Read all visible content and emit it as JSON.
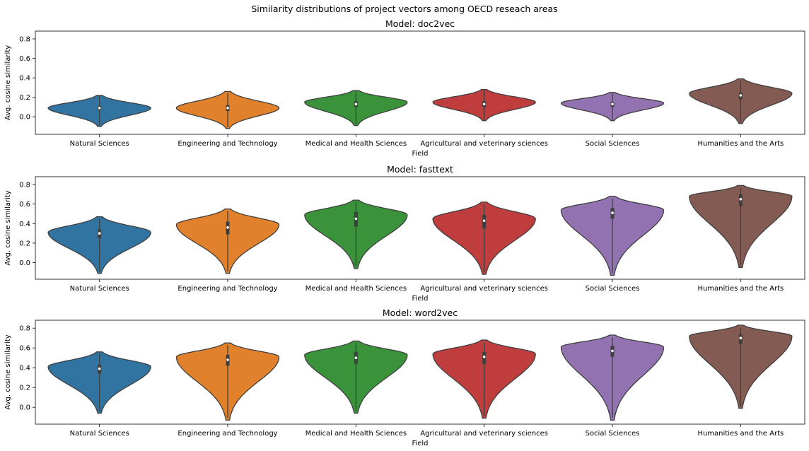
{
  "suptitle": "Similarity distributions of project vectors among OECD reseach areas",
  "colors": [
    "#3274a1",
    "#e1812c",
    "#3a923a",
    "#c03d3e",
    "#9372b2",
    "#845b53"
  ],
  "chart_data": [
    {
      "type": "violin",
      "title": "Model: doc2vec",
      "xlabel": "Field",
      "ylabel": "Avg. cosine similarity",
      "ylim": [
        -0.18,
        0.88
      ],
      "yticks": [
        0.0,
        0.2,
        0.4,
        0.6,
        0.8
      ],
      "yticklabels": [
        "0.0",
        "0.2",
        "0.4",
        "0.6",
        "0.8"
      ],
      "categories": [
        "Natural Sciences",
        "Engineering and Technology",
        "Medical and Health Sciences",
        "Agricultural and veterinary sciences",
        "Social Sciences",
        "Humanities and the Arts"
      ],
      "violins": [
        {
          "min": -0.1,
          "max": 0.22,
          "mode": 0.09,
          "q1": 0.07,
          "median": 0.09,
          "q3": 0.11
        },
        {
          "min": -0.12,
          "max": 0.26,
          "mode": 0.09,
          "q1": 0.06,
          "median": 0.09,
          "q3": 0.12
        },
        {
          "min": -0.09,
          "max": 0.27,
          "mode": 0.15,
          "q1": 0.1,
          "median": 0.13,
          "q3": 0.16
        },
        {
          "min": -0.04,
          "max": 0.28,
          "mode": 0.15,
          "q1": 0.1,
          "median": 0.13,
          "q3": 0.16
        },
        {
          "min": -0.04,
          "max": 0.25,
          "mode": 0.14,
          "q1": 0.1,
          "median": 0.13,
          "q3": 0.15
        },
        {
          "min": -0.07,
          "max": 0.39,
          "mode": 0.24,
          "q1": 0.18,
          "median": 0.22,
          "q3": 0.25
        }
      ]
    },
    {
      "type": "violin",
      "title": "Model: fasttext",
      "xlabel": "Field",
      "ylabel": "Avg. cosine similarity",
      "ylim": [
        -0.17,
        0.88
      ],
      "yticks": [
        0.0,
        0.2,
        0.4,
        0.6,
        0.8
      ],
      "yticklabels": [
        "0.0",
        "0.2",
        "0.4",
        "0.6",
        "0.8"
      ],
      "categories": [
        "Natural Sciences",
        "Engineering and Technology",
        "Medical and Health Sciences",
        "Agricultural and veterinary sciences",
        "Social Sciences",
        "Humanities and the Arts"
      ],
      "violins": [
        {
          "min": -0.11,
          "max": 0.47,
          "mode": 0.31,
          "q1": 0.25,
          "median": 0.3,
          "q3": 0.34
        },
        {
          "min": -0.11,
          "max": 0.55,
          "mode": 0.39,
          "q1": 0.29,
          "median": 0.36,
          "q3": 0.42
        },
        {
          "min": -0.06,
          "max": 0.64,
          "mode": 0.49,
          "q1": 0.37,
          "median": 0.45,
          "q3": 0.52
        },
        {
          "min": -0.12,
          "max": 0.62,
          "mode": 0.45,
          "q1": 0.35,
          "median": 0.43,
          "q3": 0.49
        },
        {
          "min": -0.13,
          "max": 0.68,
          "mode": 0.54,
          "q1": 0.45,
          "median": 0.51,
          "q3": 0.56
        },
        {
          "min": -0.05,
          "max": 0.79,
          "mode": 0.68,
          "q1": 0.58,
          "median": 0.65,
          "q3": 0.7
        }
      ]
    },
    {
      "type": "violin",
      "title": "Model: word2vec",
      "xlabel": "Field",
      "ylabel": "Avg. cosine similarity",
      "ylim": [
        -0.17,
        0.88
      ],
      "yticks": [
        0.0,
        0.2,
        0.4,
        0.6,
        0.8
      ],
      "yticklabels": [
        "0.0",
        "0.2",
        "0.4",
        "0.6",
        "0.8"
      ],
      "categories": [
        "Natural Sciences",
        "Engineering and Technology",
        "Medical and Health Sciences",
        "Agricultural and veterinary sciences",
        "Social Sciences",
        "Humanities and the Arts"
      ],
      "violins": [
        {
          "min": -0.06,
          "max": 0.56,
          "mode": 0.41,
          "q1": 0.34,
          "median": 0.39,
          "q3": 0.43
        },
        {
          "min": -0.13,
          "max": 0.65,
          "mode": 0.51,
          "q1": 0.42,
          "median": 0.48,
          "q3": 0.53
        },
        {
          "min": -0.06,
          "max": 0.67,
          "mode": 0.53,
          "q1": 0.44,
          "median": 0.5,
          "q3": 0.56
        },
        {
          "min": -0.11,
          "max": 0.68,
          "mode": 0.54,
          "q1": 0.44,
          "median": 0.51,
          "q3": 0.56
        },
        {
          "min": -0.13,
          "max": 0.73,
          "mode": 0.61,
          "q1": 0.51,
          "median": 0.57,
          "q3": 0.62
        },
        {
          "min": -0.01,
          "max": 0.83,
          "mode": 0.72,
          "q1": 0.64,
          "median": 0.7,
          "q3": 0.74
        }
      ]
    }
  ]
}
